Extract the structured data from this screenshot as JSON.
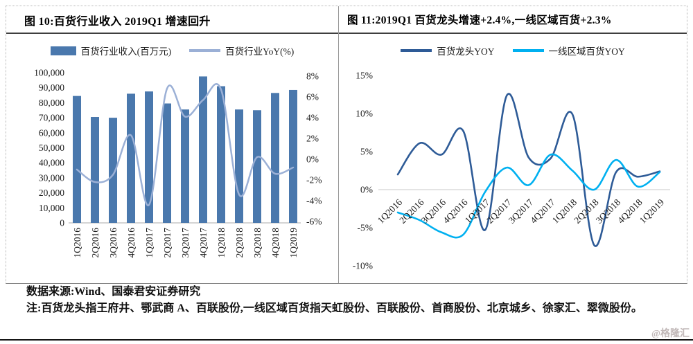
{
  "footer": {
    "source": "数据来源:Wind、国泰君安证券研究",
    "note": "注:百货龙头指王府井、鄂武商 A、百联股份,一线区域百货指天虹股份、百联股份、首商股份、北京城乡、徐家汇、翠微股份。",
    "watermark": "@格隆汇"
  },
  "chart_data": [
    {
      "type": "bar",
      "subtype": "combo-bar-line",
      "title": "图 10:百货行业收入 2019Q1 增速回升",
      "categories": [
        "1Q2016",
        "2Q2016",
        "3Q2016",
        "4Q2016",
        "1Q2017",
        "2Q2017",
        "3Q2017",
        "4Q2017",
        "1Q2018",
        "2Q2018",
        "3Q2018",
        "4Q2018",
        "1Q2019"
      ],
      "series": [
        {
          "name": "百货行业收入(百万元)",
          "mark": "bar",
          "axis": "left",
          "color": "#4a78ad",
          "values": [
            84500,
            70500,
            70000,
            86000,
            87500,
            79500,
            75500,
            97500,
            91000,
            75500,
            75000,
            86500,
            88500
          ]
        },
        {
          "name": "百货行业YoY(%)",
          "mark": "line",
          "axis": "right",
          "color": "#9bb0d6",
          "values": [
            -1.0,
            -2.2,
            -1.5,
            2.3,
            -4.4,
            6.8,
            4.1,
            5.7,
            6.7,
            -3.4,
            0.2,
            -1.4,
            -0.8
          ]
        }
      ],
      "left_axis": {
        "min": 0,
        "max": 100000,
        "step": 10000
      },
      "right_axis": {
        "min": -6,
        "max": 8,
        "step": 2,
        "suffix": "%"
      },
      "legend_position": "top",
      "grid": false
    },
    {
      "type": "line",
      "title": "图 11:2019Q1 百货龙头增速+2.4%,一线区域百货+2.3%",
      "categories": [
        "1Q2016",
        "2Q2016",
        "3Q2016",
        "4Q2016",
        "1Q2017",
        "2Q2017",
        "3Q2017",
        "4Q2017",
        "1Q2018",
        "2Q2018",
        "3Q2018",
        "4Q2018",
        "1Q2019"
      ],
      "series": [
        {
          "name": "百货龙头YOY",
          "color": "#2e5b97",
          "values": [
            2.0,
            6.1,
            4.6,
            7.7,
            -5.3,
            12.4,
            4.2,
            4.1,
            9.9,
            -7.3,
            2.3,
            1.7,
            2.4
          ]
        },
        {
          "name": "一线区域百货YOY",
          "color": "#00b0f0",
          "values": [
            -3.0,
            -4.0,
            -5.6,
            -5.9,
            -0.3,
            2.9,
            0.6,
            4.6,
            2.5,
            0.0,
            3.9,
            0.4,
            2.3
          ]
        }
      ],
      "y_axis": {
        "min": -10,
        "max": 15,
        "step": 5,
        "suffix": "%"
      },
      "legend_position": "top",
      "grid": "zero-line-only",
      "line_style": "smooth"
    }
  ]
}
